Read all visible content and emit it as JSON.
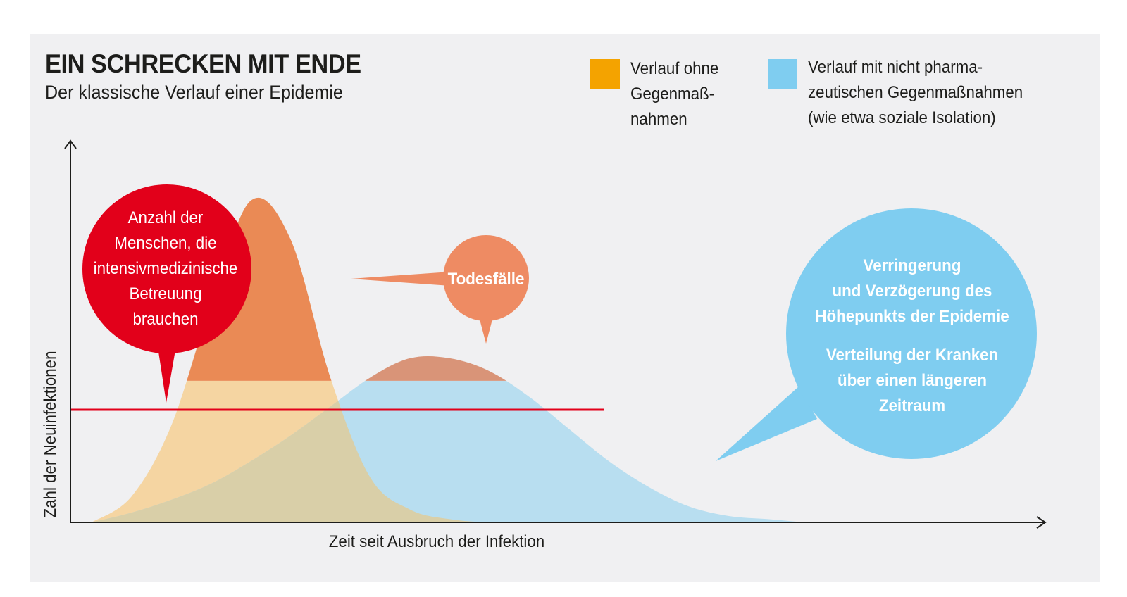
{
  "title": "EIN SCHRECKEN MIT ENDE",
  "subtitle": "Der klassische Verlauf einer Epidemie",
  "legend": [
    {
      "label": "Verlauf ohne\nGegenmaß-\nnahmen",
      "color": "#f4a300"
    },
    {
      "label": "Verlauf mit nicht pharma-\nzeutischen Gegenmaßnahmen\n(wie etwa soziale Isolation)",
      "color": "#7fcdf0"
    }
  ],
  "callouts": {
    "icu": "Anzahl der\nMenschen, die\nintensivmedizinische\nBetreuung\nbrauchen",
    "deaths": "Todesfälle",
    "flatten_1": "Verringerung\nund Verzögerung des\nHöhepunkts der Epidemie",
    "flatten_2": "Verteilung der Kranken\nüber einen längeren\nZeitraum"
  },
  "colors": {
    "panel": "#f0f0f2",
    "no_measures_fill": "#f5d5a2",
    "no_measures_peak": "#ea8a55",
    "measures_fill": "#b8def0",
    "measures_peak": "#d99478",
    "overlap": "#d9cfa8",
    "capacity_line": "#e2001a",
    "icu_bubble": "#e2001a",
    "deaths_bubble": "#ee8b63",
    "flatten_bubble": "#7fcdf0",
    "axis": "#1d1d1b"
  },
  "chart_data": {
    "type": "area",
    "x": [
      0,
      5,
      10,
      15,
      20,
      25,
      30,
      35,
      40,
      45,
      50,
      55,
      60,
      65,
      70,
      75,
      80,
      85,
      90,
      95,
      100
    ],
    "series": [
      {
        "name": "Verlauf ohne Gegenmaßnahmen",
        "values": [
          0,
          8,
          30,
          68,
          100,
          88,
          45,
          14,
          4,
          1,
          0,
          0,
          0,
          0,
          0,
          0,
          0,
          0,
          0,
          0,
          0
        ]
      },
      {
        "name": "Verlauf mit nicht pharmazeutischen Gegenmaßnahmen (wie etwa soziale Isolation)",
        "values": [
          0,
          3,
          7,
          12,
          19,
          27,
          36,
          45,
          51,
          51,
          47,
          39,
          29,
          19,
          11,
          5,
          2,
          1,
          0,
          0,
          0
        ]
      }
    ],
    "capacity_threshold": 35,
    "xlabel": "Zeit seit Ausbruch der Infektion",
    "ylabel": "Zahl der Neuinfektionen",
    "grid": false
  }
}
